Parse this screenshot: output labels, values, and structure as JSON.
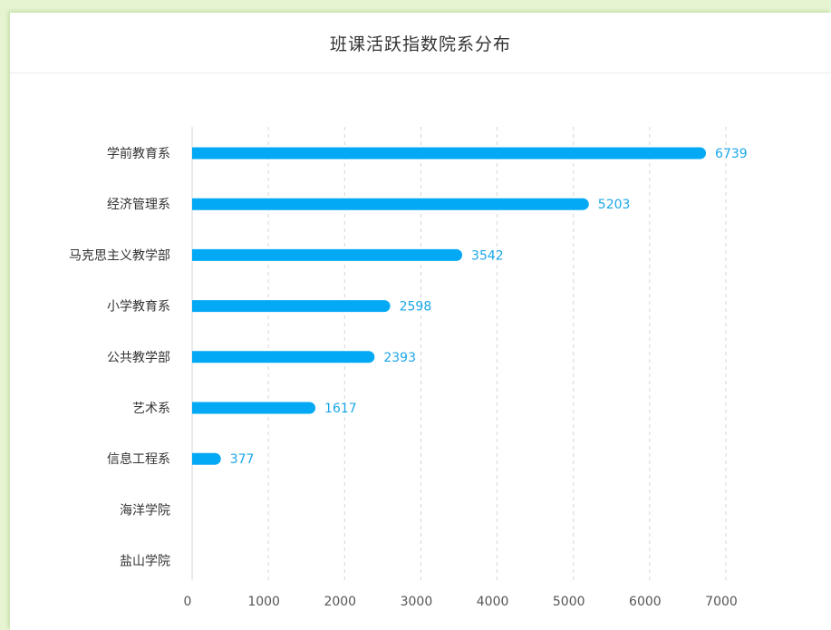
{
  "title": "班课活跃指数院系分布",
  "colors": {
    "bar": "#03a9f4",
    "value_label": "#1aa7e8",
    "axis_text": "#555555",
    "grid": "#d6d6d6"
  },
  "chart_data": {
    "type": "bar",
    "orientation": "horizontal",
    "title": "班课活跃指数院系分布",
    "categories": [
      "学前教育系",
      "经济管理系",
      "马克思主义教学部",
      "小学教育系",
      "公共教学部",
      "艺术系",
      "信息工程系",
      "海洋学院",
      "盐山学院"
    ],
    "values": [
      6739,
      5203,
      3542,
      2598,
      2393,
      1617,
      377,
      null,
      null
    ],
    "value_labels": [
      "6739",
      "5203",
      "3542",
      "2598",
      "2393",
      "1617",
      "377",
      "",
      ""
    ],
    "xlim": [
      0,
      7000
    ],
    "x_ticks": [
      0,
      1000,
      2000,
      3000,
      4000,
      5000,
      6000,
      7000
    ],
    "grid": "vertical-dashed",
    "legend": "none",
    "xlabel": "",
    "ylabel": ""
  }
}
